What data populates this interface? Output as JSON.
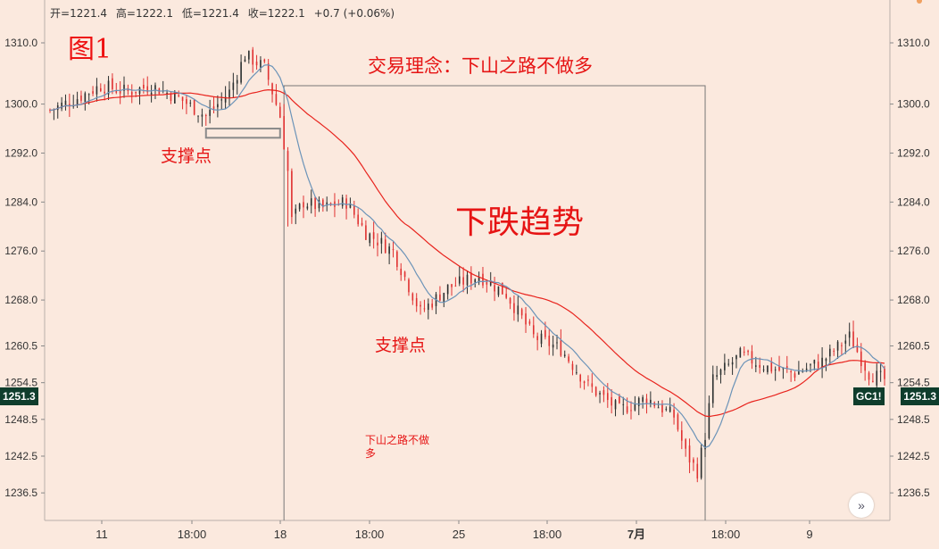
{
  "ohlc": {
    "open_label": "开",
    "open": "1221.4",
    "high_label": "高",
    "high": "1222.1",
    "low_label": "低",
    "low": "1221.4",
    "close_label": "收",
    "close": "1222.1",
    "change": "+0.7 (+0.06%)"
  },
  "figure_label": "图1",
  "annotations": {
    "philosophy": "交易理念：下山之路不做多",
    "trend": "下跌趋势",
    "support_1": "支撑点",
    "support_2": "支撑点",
    "small_note": "下山之路不做多"
  },
  "price_tag": "1251.3",
  "symbol_tag": "GC1!",
  "nav_icon": "double-chevron-right-icon",
  "colors": {
    "up": "#2a2f2f",
    "down": "#e03131",
    "ma_fast": "#6b93b8",
    "ma_slow": "#e8231d",
    "text_red": "#e61414",
    "tag_bg": "#0f3d2c",
    "background": "#fbe9de"
  },
  "chart_data": {
    "type": "candlestick",
    "x_ticks": [
      "11",
      "18:00",
      "18",
      "18:00",
      "25",
      "18:00",
      "7月",
      "18:00",
      "9"
    ],
    "y_ticks": [
      1310.0,
      1300.0,
      1292.0,
      1284.0,
      1276.0,
      1268.0,
      1260.5,
      1254.5,
      1248.5,
      1242.5,
      1236.5
    ],
    "ylim": [
      1232,
      1317
    ],
    "price_anchors": [
      [
        0,
        1299
      ],
      [
        7,
        1301
      ],
      [
        13,
        1303
      ],
      [
        20,
        1302
      ],
      [
        26,
        1303
      ],
      [
        33,
        1301
      ],
      [
        40,
        1298
      ],
      [
        46,
        1302
      ],
      [
        50,
        1308
      ],
      [
        55,
        1306
      ],
      [
        59,
        1298
      ],
      [
        61,
        1289
      ],
      [
        62,
        1281
      ],
      [
        65,
        1284
      ],
      [
        70,
        1283
      ],
      [
        76,
        1284
      ],
      [
        81,
        1279
      ],
      [
        88,
        1276
      ],
      [
        95,
        1266
      ],
      [
        102,
        1270
      ],
      [
        110,
        1272
      ],
      [
        117,
        1269
      ],
      [
        124,
        1262
      ],
      [
        131,
        1260
      ],
      [
        138,
        1254
      ],
      [
        146,
        1250
      ],
      [
        153,
        1252
      ],
      [
        160,
        1249
      ],
      [
        163,
        1243
      ],
      [
        166,
        1240
      ],
      [
        168,
        1246
      ],
      [
        170,
        1255
      ],
      [
        177,
        1259
      ],
      [
        184,
        1257
      ],
      [
        191,
        1256
      ],
      [
        198,
        1258
      ],
      [
        205,
        1262
      ],
      [
        210,
        1256
      ],
      [
        214,
        1255
      ]
    ],
    "support_box": {
      "x_start": 40,
      "x_end": 59,
      "y_top": 1296.0,
      "y_bottom": 1294.5
    },
    "trend_box": {
      "x_start": 60,
      "x_end": 168,
      "y_top": 1303.0
    }
  }
}
